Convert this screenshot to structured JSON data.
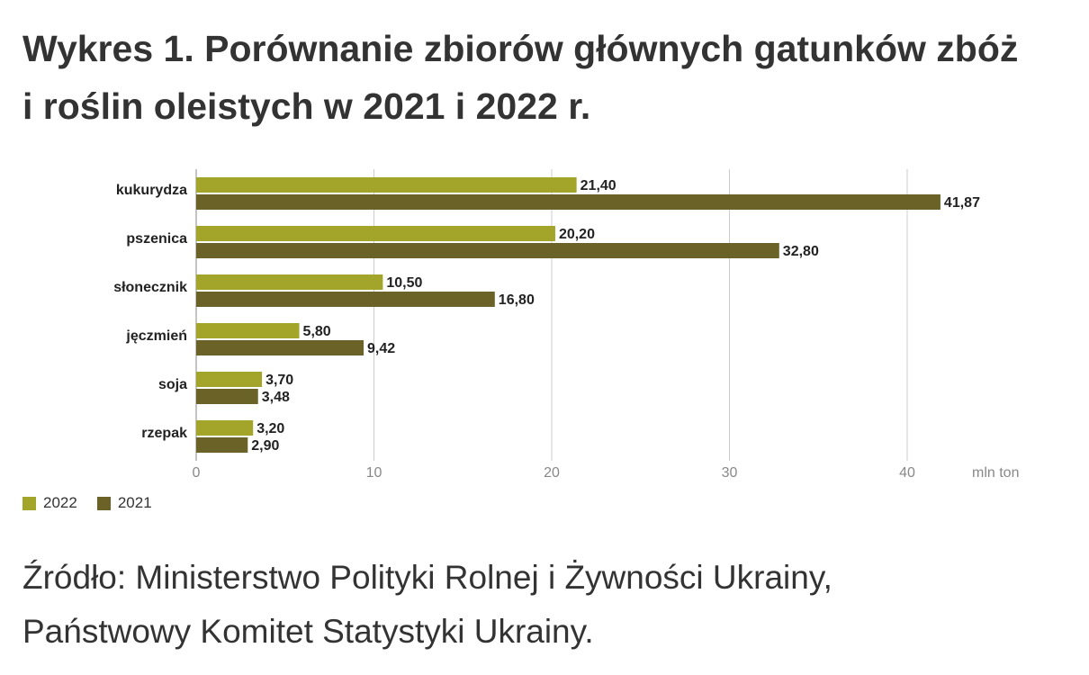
{
  "title_line1": "Wykres 1. Porównanie zbiorów głównych gatunków zbóż",
  "title_line2": "i roślin oleistych w 2021 i 2022 r.",
  "source_line1": "Źródło: Ministerstwo Polityki Rolnej i Żywności Ukrainy,",
  "source_line2": "Państwowy Komitet Statystyki Ukrainy.",
  "chart_data": {
    "type": "bar",
    "orientation": "horizontal",
    "categories": [
      "kukurydza",
      "pszenica",
      "słonecznik",
      "jęczmień",
      "soja",
      "rzepak"
    ],
    "series": [
      {
        "name": "2022",
        "color": "#a3a52b",
        "values": [
          21.4,
          20.2,
          10.5,
          5.8,
          3.7,
          3.2
        ],
        "labels": [
          "21,40",
          "20,20",
          "10,50",
          "5,80",
          "3,70",
          "3,20"
        ]
      },
      {
        "name": "2021",
        "color": "#6a6226",
        "values": [
          41.87,
          32.8,
          16.8,
          9.42,
          3.48,
          2.9
        ],
        "labels": [
          "41,87",
          "32,80",
          "16,80",
          "9,42",
          "3,48",
          "2,90"
        ]
      }
    ],
    "xlim": [
      0,
      47
    ],
    "xticks": [
      0,
      10,
      20,
      30,
      40
    ],
    "xlabel": "mln ton",
    "grid": true,
    "legend_position": "bottom-left"
  }
}
